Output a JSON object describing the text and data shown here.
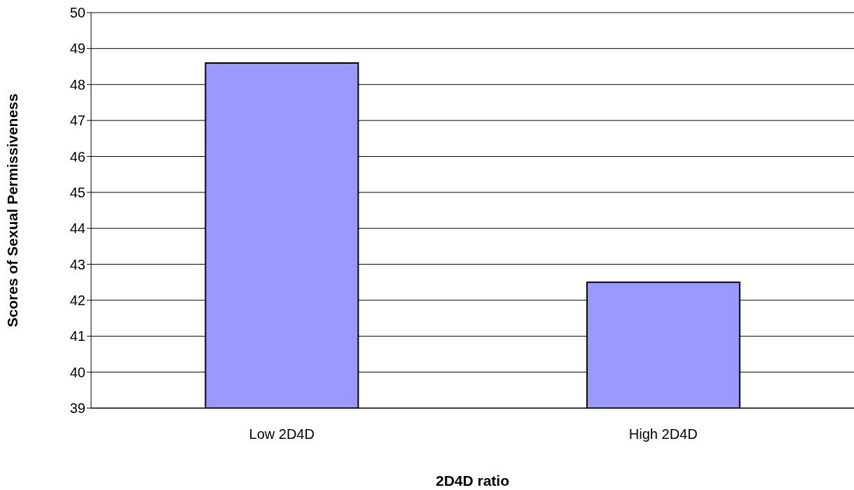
{
  "chart_data": {
    "type": "bar",
    "xlabel": "2D4D ratio",
    "ylabel": "Scores of Sexual Permissiveness",
    "categories": [
      "Low 2D4D",
      "High 2D4D"
    ],
    "values": [
      48.6,
      42.5
    ],
    "color": "#9999ff",
    "ylim": [
      39,
      50
    ],
    "yticks": [
      39,
      40,
      41,
      42,
      43,
      44,
      45,
      46,
      47,
      48,
      49,
      50
    ],
    "grid": "y"
  }
}
